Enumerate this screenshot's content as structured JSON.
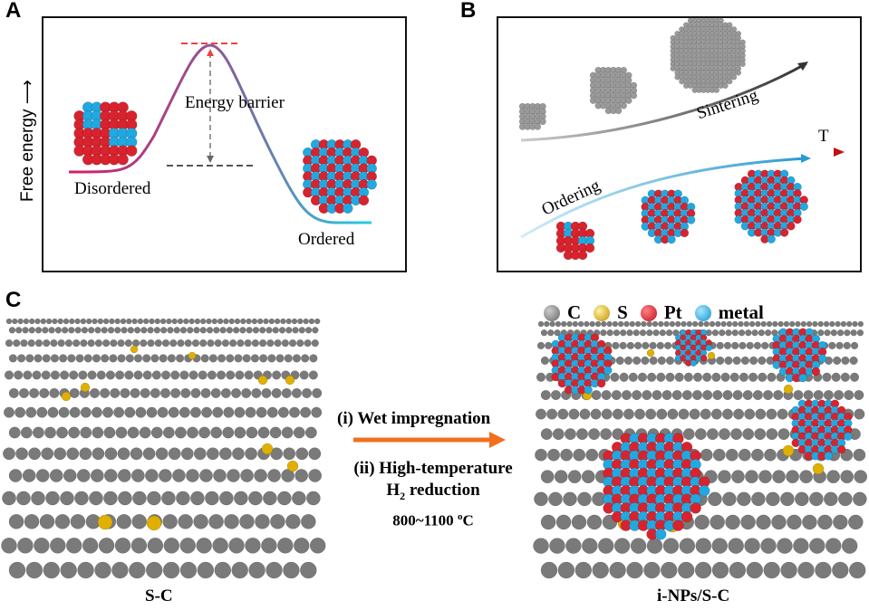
{
  "panel_a": {
    "label": "A",
    "y_axis_label": "Free energy",
    "barrier_label": "Energy barrier",
    "left_state": "Disordered",
    "right_state": "Ordered"
  },
  "panel_b": {
    "label": "B",
    "axis_label": "T",
    "upper_path_label": "Sintering",
    "lower_path_label": "Ordering"
  },
  "panel_c": {
    "label": "C",
    "legend": [
      {
        "label": "C",
        "color": "#7a7a7a"
      },
      {
        "label": "S",
        "color": "#e0b000"
      },
      {
        "label": "Pt",
        "color": "#d8232f"
      },
      {
        "label": "metal",
        "color": "#22a8e0"
      }
    ],
    "step1": "(i) Wet impregnation",
    "step2_line1": "(ii) High-temperature",
    "step2_line2_pre": "H",
    "step2_line2_sub": "2",
    "step2_line2_post": " reduction",
    "temperature_pre": "800~1100 ",
    "temperature_sup": "o",
    "temperature_post": "C",
    "left_caption": "S-C",
    "right_caption": "i-NPs/S-C",
    "arrow_color": "#f07020"
  }
}
